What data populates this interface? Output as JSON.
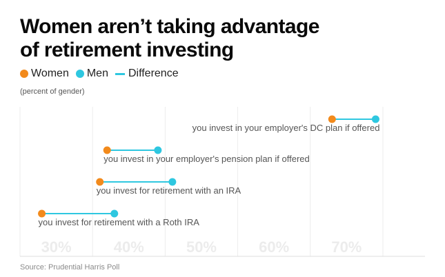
{
  "colors": {
    "women": "#f28a1c",
    "men": "#2ec7e0",
    "difference": "#2ec7e0",
    "gridline": "#ececec",
    "tick_label": "#ececec",
    "row_label": "#555555"
  },
  "chart_data": {
    "type": "dot-range",
    "title_lines": [
      "Women aren’t taking advantage",
      "of retirement investing"
    ],
    "subtitle": "(percent of gender)",
    "legend": {
      "women": "Women",
      "men": "Men",
      "difference": "Difference"
    },
    "xlim": [
      25,
      77
    ],
    "x_ticks": [
      30,
      40,
      50,
      60,
      70
    ],
    "x_tick_labels": [
      "30%",
      "40%",
      "50%",
      "60%",
      "70%"
    ],
    "gridlines": [
      25,
      35,
      45,
      55,
      65,
      75
    ],
    "rows": [
      {
        "label": "you invest in your employer's DC plan if offered",
        "women": 68,
        "men": 74
      },
      {
        "label": "you invest in your employer's pension plan if offered",
        "women": 37,
        "men": 44
      },
      {
        "label": "you invest for retirement with an IRA",
        "women": 36,
        "men": 46
      },
      {
        "label": "you invest for retirement with a Roth IRA",
        "women": 28,
        "men": 38
      }
    ],
    "source": "Source: Prudential Harris Poll"
  }
}
